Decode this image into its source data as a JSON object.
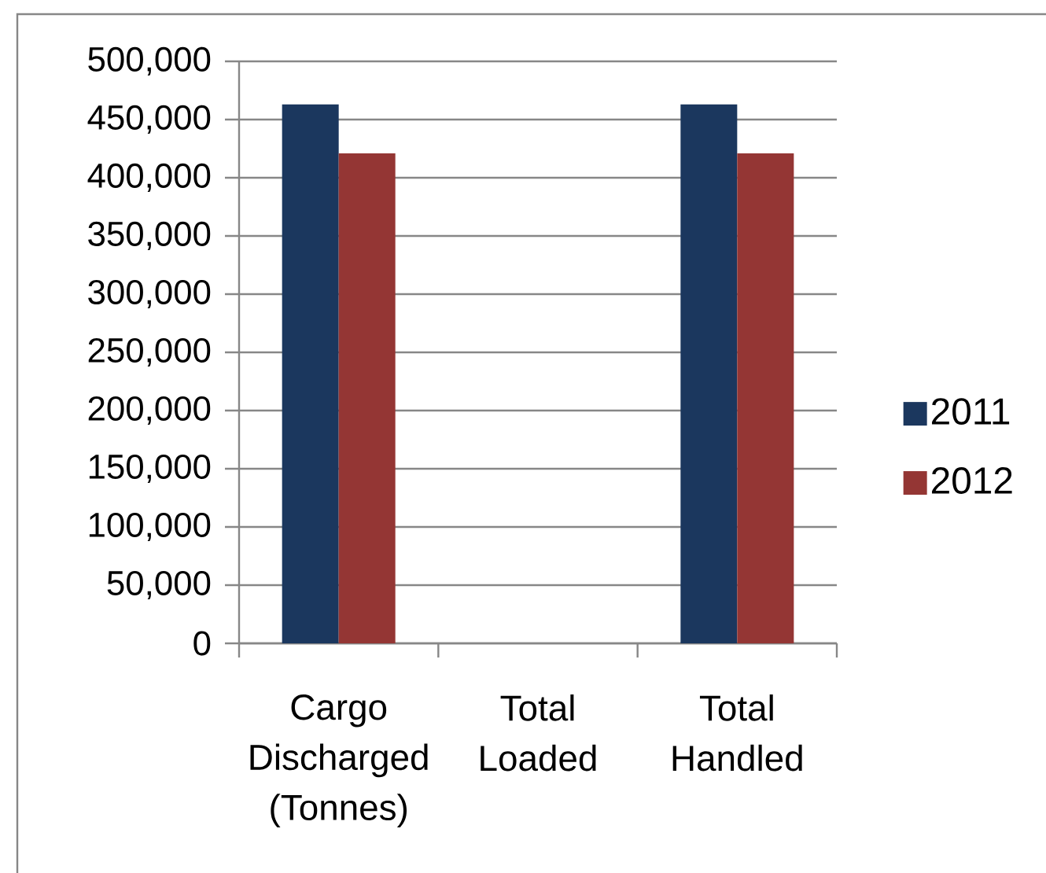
{
  "chart_data": {
    "type": "bar",
    "categories": [
      "Cargo Discharged (Tonnes)",
      "Total Loaded",
      "Total Handled"
    ],
    "series": [
      {
        "name": "2011",
        "color": "#1b375e",
        "values": [
          463000,
          null,
          463000
        ]
      },
      {
        "name": "2012",
        "color": "#943634",
        "values": [
          421000,
          null,
          421000
        ]
      }
    ],
    "ylim": [
      0,
      500000
    ],
    "yticks": [
      0,
      {
        "value": 50000,
        "label": "50,000"
      },
      {
        "value": 100000,
        "label": "100,000"
      },
      {
        "value": 150000,
        "label": "150,000"
      },
      {
        "value": 200000,
        "label": "200,000"
      },
      {
        "value": 250000,
        "label": "250,000"
      },
      {
        "value": 300000,
        "label": "300,000"
      },
      {
        "value": 350000,
        "label": "350,000"
      },
      {
        "value": 400000,
        "label": "400,000"
      },
      {
        "value": 450000,
        "label": "450,000"
      },
      {
        "value": 500000,
        "label": "500,000"
      }
    ],
    "grid": "y",
    "legend": "right"
  }
}
